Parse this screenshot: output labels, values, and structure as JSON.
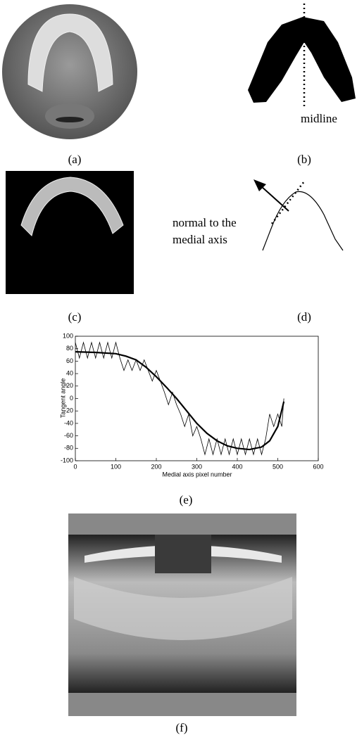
{
  "captions": [
    "(a)",
    "(b)",
    "(c)",
    "(d)",
    "(e)",
    "(f)"
  ],
  "panel_b": {
    "label": "midline"
  },
  "panel_d": {
    "label_lines": [
      "normal to the",
      "medial axis"
    ]
  },
  "chart_data": {
    "type": "line",
    "xlabel": "Medial axis pixel number",
    "ylabel": "Tangent angle",
    "xlim": [
      0,
      600
    ],
    "xticks": [
      0,
      100,
      200,
      300,
      400,
      500,
      600
    ],
    "ylim": [
      -100,
      100
    ],
    "yticks": [
      -100,
      -80,
      -60,
      -40,
      -20,
      0,
      20,
      40,
      60,
      80,
      100
    ],
    "series": [
      {
        "color": "#000000",
        "width": 0.8,
        "x": [
          0,
          10,
          20,
          30,
          40,
          50,
          60,
          70,
          80,
          90,
          100,
          110,
          120,
          130,
          140,
          150,
          160,
          170,
          180,
          190,
          200,
          210,
          220,
          230,
          240,
          250,
          260,
          270,
          280,
          290,
          300,
          310,
          320,
          330,
          340,
          350,
          360,
          370,
          380,
          390,
          400,
          410,
          420,
          430,
          440,
          450,
          460,
          470,
          480,
          490,
          500,
          510,
          515
        ],
        "values": [
          90,
          65,
          90,
          65,
          90,
          65,
          90,
          65,
          90,
          65,
          90,
          65,
          45,
          62,
          45,
          62,
          45,
          62,
          45,
          28,
          45,
          28,
          10,
          -10,
          10,
          -10,
          -25,
          -45,
          -25,
          -60,
          -45,
          -65,
          -90,
          -65,
          -90,
          -65,
          -90,
          -65,
          -90,
          -65,
          -90,
          -65,
          -90,
          -65,
          -90,
          -65,
          -90,
          -65,
          -25,
          -45,
          -25,
          -45,
          0
        ]
      },
      {
        "color": "#000000",
        "width": 2.2,
        "x": [
          0,
          50,
          100,
          125,
          150,
          175,
          200,
          225,
          250,
          275,
          300,
          325,
          350,
          375,
          400,
          430,
          460,
          480,
          500,
          515
        ],
        "values": [
          75,
          74,
          72,
          68,
          62,
          50,
          35,
          18,
          0,
          -20,
          -40,
          -56,
          -68,
          -76,
          -80,
          -82,
          -78,
          -68,
          -45,
          -5
        ]
      }
    ]
  }
}
